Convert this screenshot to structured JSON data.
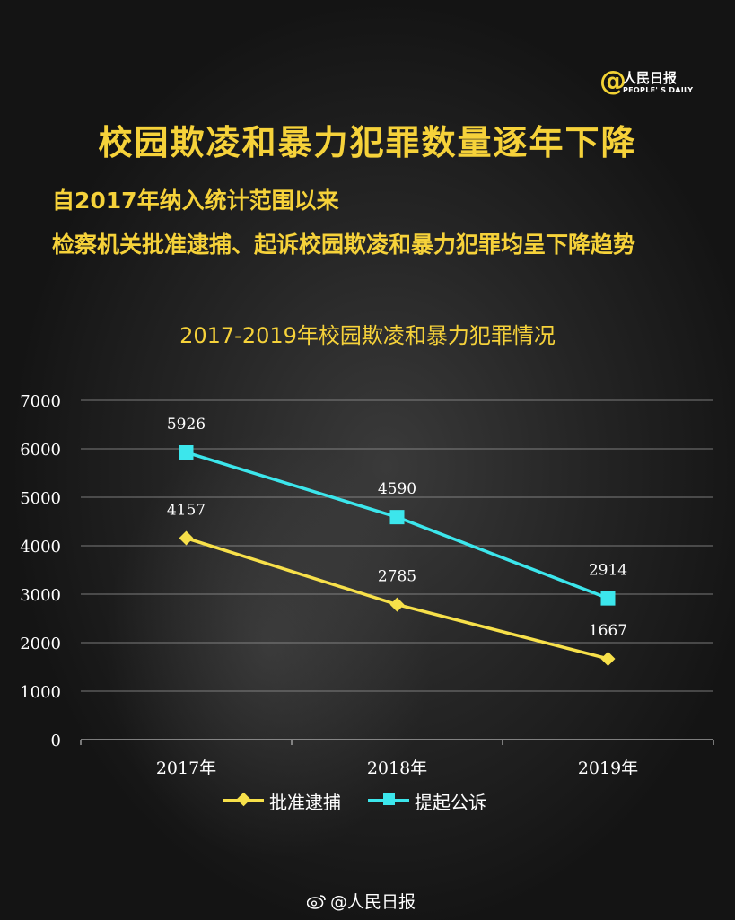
{
  "logo": {
    "at": "@",
    "text": "人民日报",
    "en": "PEOPLE' S DAILY"
  },
  "header": {
    "title": "校园欺凌和暴力犯罪数量逐年下降",
    "subtitle_line1": "自2017年纳入统计范围以来",
    "subtitle_line2": "检察机关批准逮捕、起诉校园欺凌和暴力犯罪均呈下降趋势"
  },
  "chart_data": {
    "type": "line",
    "title": "2017-2019年校园欺凌和暴力犯罪情况",
    "categories": [
      "2017年",
      "2018年",
      "2019年"
    ],
    "series": [
      {
        "name": "批准逮捕",
        "values": [
          4157,
          2785,
          1667
        ],
        "color": "#f7e04a",
        "marker": "diamond"
      },
      {
        "name": "提起公诉",
        "values": [
          5926,
          4590,
          2914
        ],
        "color": "#3ce6ec",
        "marker": "square"
      }
    ],
    "ylim": [
      0,
      7000
    ],
    "yticks": [
      0,
      1000,
      2000,
      3000,
      4000,
      5000,
      6000,
      7000
    ],
    "grid": true,
    "legend": "bottom",
    "xlabel": "",
    "ylabel": ""
  },
  "footer": {
    "text": "@人民日报"
  }
}
